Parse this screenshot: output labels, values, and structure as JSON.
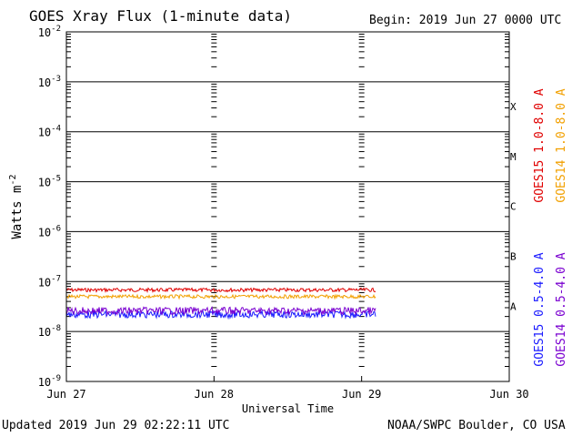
{
  "title": "GOES Xray Flux (1-minute data)",
  "begin_label": "Begin:  2019 Jun 27 0000 UTC",
  "updated_label": "Updated 2019 Jun 29 02:22:11 UTC",
  "credit_label": "NOAA/SWPC Boulder, CO USA",
  "colors": {
    "red": "#e00000",
    "orange": "#f2a000",
    "blue": "#1a1aff",
    "purple": "#7a00d0",
    "frame": "#000000"
  },
  "chart_data": {
    "type": "line",
    "title": "GOES Xray Flux (1-minute data)",
    "xlabel": "Universal Time",
    "ylabel": "Watts m-2",
    "yscale": "log",
    "ylim": [
      1e-09,
      0.01
    ],
    "xlim_days": [
      0,
      3
    ],
    "x_tick_labels": [
      "Jun 27",
      "Jun 28",
      "Jun 29",
      "Jun 30"
    ],
    "y_ticks": [
      {
        "value": 0.01,
        "base": "10",
        "exp": "-2"
      },
      {
        "value": 0.001,
        "base": "10",
        "exp": "-3"
      },
      {
        "value": 0.0001,
        "base": "10",
        "exp": "-4"
      },
      {
        "value": 1e-05,
        "base": "10",
        "exp": "-5"
      },
      {
        "value": 1e-06,
        "base": "10",
        "exp": "-6"
      },
      {
        "value": 1e-07,
        "base": "10",
        "exp": "-7"
      },
      {
        "value": 1e-08,
        "base": "10",
        "exp": "-8"
      },
      {
        "value": 1e-09,
        "base": "10",
        "exp": "-9"
      }
    ],
    "flare_classes": [
      {
        "label": "X",
        "value": 0.00032
      },
      {
        "label": "M",
        "value": 3.2e-05
      },
      {
        "label": "C",
        "value": 3.2e-06
      },
      {
        "label": "B",
        "value": 3.2e-07
      },
      {
        "label": "A",
        "value": 3.2e-08
      }
    ],
    "grid": true,
    "data_end_day": 2.1,
    "series": [
      {
        "name": "GOES15 1.0-8.0 A",
        "color": "#e00000",
        "level": 6.8e-08
      },
      {
        "name": "GOES14 1.0-8.0 A",
        "color": "#f2a000",
        "level": 5e-08
      },
      {
        "name": "GOES15 0.5-4.0 A",
        "color": "#1a1aff",
        "level": 2.2e-08
      },
      {
        "name": "GOES14 0.5-4.0 A",
        "color": "#7a00d0",
        "level": 2.6e-08
      }
    ]
  }
}
